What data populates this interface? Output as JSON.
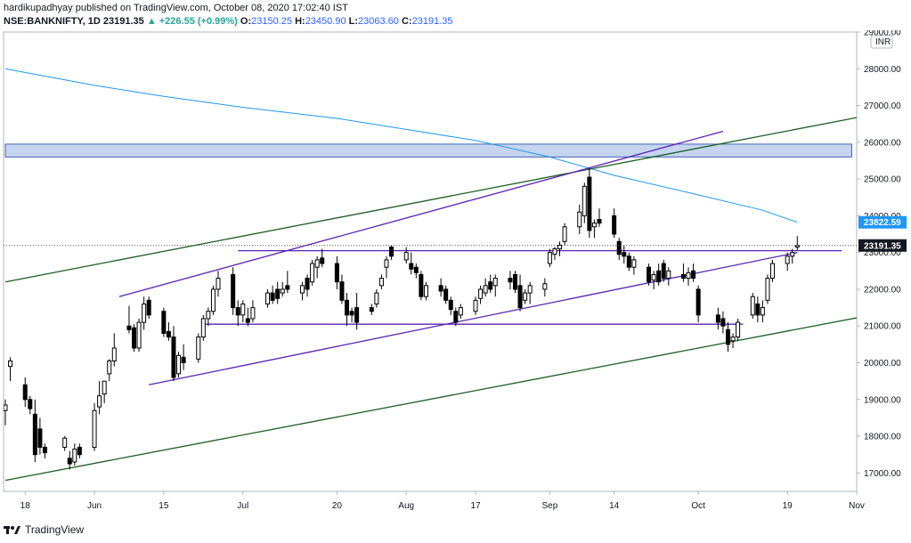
{
  "header": {
    "line1": "hardikupadhyay published on TradingView.com, October 08, 2020 17:02:40 IST",
    "symbol": "NSE:BANKNIFTY, 1D",
    "last": "23191.35",
    "change": "▲ +226.55 (+0.99%)",
    "o_label": "O:",
    "o": "23150.25",
    "h_label": "H:",
    "h": "23450.90",
    "l_label": "L:",
    "l": "23063.60",
    "c_label": "C:",
    "c": "23191.35"
  },
  "footer": {
    "brand": "TradingView"
  },
  "currency": "INR",
  "colors": {
    "ma": "#2196f3",
    "channel": "#5b21b6",
    "trend": "#1b5e20",
    "zone_fill": "#c5d5ef",
    "zone_border": "#3f63b5",
    "price_tag": "#131722",
    "ma_tag": "#2196f3"
  },
  "chart_data": {
    "type": "candlestick",
    "title": "",
    "xlabel": "",
    "ylabel": "",
    "ylim": [
      16500,
      29000
    ],
    "y_ticks": [
      17000,
      18000,
      19000,
      20000,
      21000,
      22000,
      23000,
      24000,
      25000,
      26000,
      27000,
      28000,
      29000
    ],
    "y_tick_labels": [
      "17000.00",
      "18000.00",
      "19000.00",
      "20000.00",
      "21000.00",
      "22000.00",
      "23000.00",
      "24000.00",
      "25000.00",
      "26000.00",
      "27000.00",
      "28000.00",
      "29000.00"
    ],
    "x_ticks": [
      {
        "label": "18",
        "date": "2020-05-18"
      },
      {
        "label": "Jun",
        "date": "2020-06-01"
      },
      {
        "label": "15",
        "date": "2020-06-15"
      },
      {
        "label": "Jul",
        "date": "2020-07-01"
      },
      {
        "label": "20",
        "date": "2020-07-20"
      },
      {
        "label": "Aug",
        "date": "2020-08-03"
      },
      {
        "label": "17",
        "date": "2020-08-17"
      },
      {
        "label": "Sep",
        "date": "2020-09-01"
      },
      {
        "label": "14",
        "date": "2020-09-14"
      },
      {
        "label": "Oct",
        "date": "2020-10-01"
      },
      {
        "label": "19",
        "date": "2020-10-19"
      },
      {
        "label": "Nov",
        "date": "2020-11-02"
      }
    ],
    "x_range": [
      "2020-05-14",
      "2020-11-02"
    ],
    "last_price": 23191.35,
    "last_price_label": "23191.35",
    "ma_last": 23822.59,
    "ma_last_label": "23822.59",
    "candles": [
      {
        "d": "2020-05-14",
        "o": 18700,
        "h": 19000,
        "l": 18300,
        "c": 18850
      },
      {
        "d": "2020-05-15",
        "o": 19900,
        "h": 20150,
        "l": 19500,
        "c": 20050
      },
      {
        "d": "2020-05-18",
        "o": 19400,
        "h": 19600,
        "l": 18800,
        "c": 19000
      },
      {
        "d": "2020-05-19",
        "o": 19000,
        "h": 19100,
        "l": 18600,
        "c": 18750
      },
      {
        "d": "2020-05-20",
        "o": 18600,
        "h": 19000,
        "l": 17300,
        "c": 17500
      },
      {
        "d": "2020-05-21",
        "o": 18200,
        "h": 18500,
        "l": 17500,
        "c": 17700
      },
      {
        "d": "2020-05-22",
        "o": 17700,
        "h": 17800,
        "l": 17400,
        "c": 17550
      },
      {
        "d": "2020-05-26",
        "o": 17700,
        "h": 18000,
        "l": 17600,
        "c": 17950
      },
      {
        "d": "2020-05-27",
        "o": 17400,
        "h": 17600,
        "l": 17100,
        "c": 17250
      },
      {
        "d": "2020-05-28",
        "o": 17300,
        "h": 17800,
        "l": 17200,
        "c": 17650
      },
      {
        "d": "2020-05-29",
        "o": 17700,
        "h": 17800,
        "l": 17400,
        "c": 17500
      },
      {
        "d": "2020-06-01",
        "o": 17700,
        "h": 18900,
        "l": 17600,
        "c": 18700
      },
      {
        "d": "2020-06-02",
        "o": 18800,
        "h": 19500,
        "l": 18600,
        "c": 19100
      },
      {
        "d": "2020-06-03",
        "o": 19150,
        "h": 19500,
        "l": 18900,
        "c": 19500
      },
      {
        "d": "2020-06-04",
        "o": 19700,
        "h": 20100,
        "l": 19500,
        "c": 20050
      },
      {
        "d": "2020-06-05",
        "o": 20050,
        "h": 20800,
        "l": 19900,
        "c": 20400
      },
      {
        "d": "2020-06-08",
        "o": 21000,
        "h": 21550,
        "l": 20800,
        "c": 20900
      },
      {
        "d": "2020-06-09",
        "o": 20950,
        "h": 21050,
        "l": 20300,
        "c": 20400
      },
      {
        "d": "2020-06-10",
        "o": 20400,
        "h": 21200,
        "l": 20300,
        "c": 21100
      },
      {
        "d": "2020-06-11",
        "o": 21100,
        "h": 21800,
        "l": 20900,
        "c": 21600
      },
      {
        "d": "2020-06-12",
        "o": 21700,
        "h": 21800,
        "l": 21200,
        "c": 21300
      },
      {
        "d": "2020-06-15",
        "o": 21400,
        "h": 21500,
        "l": 20700,
        "c": 20800
      },
      {
        "d": "2020-06-16",
        "o": 20850,
        "h": 21100,
        "l": 20600,
        "c": 20700
      },
      {
        "d": "2020-06-17",
        "o": 20700,
        "h": 21000,
        "l": 19500,
        "c": 19600
      },
      {
        "d": "2020-06-18",
        "o": 19700,
        "h": 20300,
        "l": 19600,
        "c": 20200
      },
      {
        "d": "2020-06-19",
        "o": 20150,
        "h": 20500,
        "l": 19800,
        "c": 20000
      },
      {
        "d": "2020-06-22",
        "o": 20100,
        "h": 20800,
        "l": 20000,
        "c": 20700
      },
      {
        "d": "2020-06-23",
        "o": 20700,
        "h": 21300,
        "l": 20600,
        "c": 21200
      },
      {
        "d": "2020-06-24",
        "o": 21200,
        "h": 21500,
        "l": 21000,
        "c": 21400
      },
      {
        "d": "2020-06-25",
        "o": 21400,
        "h": 22100,
        "l": 21300,
        "c": 22000
      },
      {
        "d": "2020-06-26",
        "o": 22000,
        "h": 22500,
        "l": 21800,
        "c": 22300
      },
      {
        "d": "2020-06-29",
        "o": 22400,
        "h": 22600,
        "l": 21300,
        "c": 21500
      },
      {
        "d": "2020-06-30",
        "o": 21500,
        "h": 21700,
        "l": 21000,
        "c": 21300
      },
      {
        "d": "2020-07-01",
        "o": 21300,
        "h": 21700,
        "l": 21100,
        "c": 21600
      },
      {
        "d": "2020-07-02",
        "o": 21200,
        "h": 21500,
        "l": 21000,
        "c": 21100
      },
      {
        "d": "2020-07-03",
        "o": 21200,
        "h": 21700,
        "l": 21100,
        "c": 21500
      },
      {
        "d": "2020-07-06",
        "o": 21600,
        "h": 22000,
        "l": 21500,
        "c": 21900
      },
      {
        "d": "2020-07-07",
        "o": 21900,
        "h": 22100,
        "l": 21600,
        "c": 21700
      },
      {
        "d": "2020-07-08",
        "o": 22000,
        "h": 22200,
        "l": 21600,
        "c": 21750
      },
      {
        "d": "2020-07-09",
        "o": 21900,
        "h": 22200,
        "l": 21800,
        "c": 22000
      },
      {
        "d": "2020-07-10",
        "o": 22100,
        "h": 22500,
        "l": 21900,
        "c": 22000
      },
      {
        "d": "2020-07-13",
        "o": 21900,
        "h": 22200,
        "l": 21700,
        "c": 22100
      },
      {
        "d": "2020-07-14",
        "o": 22300,
        "h": 22400,
        "l": 21800,
        "c": 22000
      },
      {
        "d": "2020-07-15",
        "o": 22200,
        "h": 22800,
        "l": 22100,
        "c": 22700
      },
      {
        "d": "2020-07-16",
        "o": 22600,
        "h": 22900,
        "l": 22300,
        "c": 22800
      },
      {
        "d": "2020-07-17",
        "o": 22850,
        "h": 23100,
        "l": 22600,
        "c": 22700
      },
      {
        "d": "2020-07-20",
        "o": 22700,
        "h": 22900,
        "l": 22000,
        "c": 22200
      },
      {
        "d": "2020-07-21",
        "o": 22200,
        "h": 22400,
        "l": 21600,
        "c": 21700
      },
      {
        "d": "2020-07-22",
        "o": 21700,
        "h": 21900,
        "l": 21000,
        "c": 21300
      },
      {
        "d": "2020-07-23",
        "o": 21400,
        "h": 21500,
        "l": 21100,
        "c": 21300
      },
      {
        "d": "2020-07-24",
        "o": 21500,
        "h": 21900,
        "l": 20900,
        "c": 21100
      },
      {
        "d": "2020-07-27",
        "o": 21500,
        "h": 21600,
        "l": 21300,
        "c": 21400
      },
      {
        "d": "2020-07-28",
        "o": 21600,
        "h": 22000,
        "l": 21500,
        "c": 21900
      },
      {
        "d": "2020-07-29",
        "o": 22100,
        "h": 22400,
        "l": 22000,
        "c": 22300
      },
      {
        "d": "2020-07-30",
        "o": 22600,
        "h": 22900,
        "l": 22300,
        "c": 22800
      },
      {
        "d": "2020-07-31",
        "o": 23150,
        "h": 23200,
        "l": 22800,
        "c": 22900
      },
      {
        "d": "2020-08-03",
        "o": 22800,
        "h": 23150,
        "l": 22700,
        "c": 23000
      },
      {
        "d": "2020-08-04",
        "o": 22700,
        "h": 23000,
        "l": 22400,
        "c": 22550
      },
      {
        "d": "2020-08-05",
        "o": 22600,
        "h": 22700,
        "l": 22300,
        "c": 22450
      },
      {
        "d": "2020-08-06",
        "o": 22400,
        "h": 22500,
        "l": 21700,
        "c": 21800
      },
      {
        "d": "2020-08-07",
        "o": 21800,
        "h": 22200,
        "l": 21700,
        "c": 22100
      },
      {
        "d": "2020-08-10",
        "o": 22100,
        "h": 22300,
        "l": 21800,
        "c": 21950
      },
      {
        "d": "2020-08-11",
        "o": 22000,
        "h": 22100,
        "l": 21600,
        "c": 21700
      },
      {
        "d": "2020-08-12",
        "o": 21700,
        "h": 21800,
        "l": 21300,
        "c": 21450
      },
      {
        "d": "2020-08-13",
        "o": 21400,
        "h": 21500,
        "l": 21000,
        "c": 21100
      },
      {
        "d": "2020-08-14",
        "o": 21300,
        "h": 21600,
        "l": 21200,
        "c": 21500
      },
      {
        "d": "2020-08-17",
        "o": 21400,
        "h": 21800,
        "l": 21300,
        "c": 21700
      },
      {
        "d": "2020-08-18",
        "o": 21750,
        "h": 22100,
        "l": 21600,
        "c": 22000
      },
      {
        "d": "2020-08-19",
        "o": 21900,
        "h": 22300,
        "l": 21800,
        "c": 22100
      },
      {
        "d": "2020-08-20",
        "o": 22200,
        "h": 22400,
        "l": 21900,
        "c": 22000
      },
      {
        "d": "2020-08-21",
        "o": 22100,
        "h": 22400,
        "l": 21800,
        "c": 22300
      },
      {
        "d": "2020-08-24",
        "o": 22300,
        "h": 22500,
        "l": 22000,
        "c": 22200
      },
      {
        "d": "2020-08-25",
        "o": 22400,
        "h": 22500,
        "l": 21900,
        "c": 22000
      },
      {
        "d": "2020-08-26",
        "o": 22100,
        "h": 22400,
        "l": 21400,
        "c": 21500
      },
      {
        "d": "2020-08-27",
        "o": 21700,
        "h": 22000,
        "l": 21600,
        "c": 21900
      },
      {
        "d": "2020-08-28",
        "o": 21900,
        "h": 22200,
        "l": 21600,
        "c": 22100
      },
      {
        "d": "2020-08-31",
        "o": 22000,
        "h": 22300,
        "l": 21800,
        "c": 22150
      },
      {
        "d": "2020-09-01",
        "o": 22700,
        "h": 23100,
        "l": 22600,
        "c": 23000
      },
      {
        "d": "2020-09-02",
        "o": 22950,
        "h": 23150,
        "l": 22800,
        "c": 23100
      },
      {
        "d": "2020-09-03",
        "o": 23100,
        "h": 23300,
        "l": 22900,
        "c": 23200
      },
      {
        "d": "2020-09-04",
        "o": 23300,
        "h": 23800,
        "l": 23200,
        "c": 23700
      },
      {
        "d": "2020-09-07",
        "o": 23700,
        "h": 24300,
        "l": 23500,
        "c": 24100
      },
      {
        "d": "2020-09-08",
        "o": 24000,
        "h": 24900,
        "l": 23800,
        "c": 24800
      },
      {
        "d": "2020-09-09",
        "o": 25050,
        "h": 25300,
        "l": 23400,
        "c": 23600
      },
      {
        "d": "2020-09-10",
        "o": 23700,
        "h": 23900,
        "l": 23400,
        "c": 23800
      },
      {
        "d": "2020-09-11",
        "o": 23900,
        "h": 24200,
        "l": 23700,
        "c": 23800
      },
      {
        "d": "2020-09-14",
        "o": 24000,
        "h": 24200,
        "l": 23400,
        "c": 23500
      },
      {
        "d": "2020-09-15",
        "o": 23300,
        "h": 23400,
        "l": 22800,
        "c": 22950
      },
      {
        "d": "2020-09-16",
        "o": 23000,
        "h": 23200,
        "l": 22700,
        "c": 22900
      },
      {
        "d": "2020-09-17",
        "o": 22900,
        "h": 23000,
        "l": 22500,
        "c": 22600
      },
      {
        "d": "2020-09-18",
        "o": 22600,
        "h": 22900,
        "l": 22400,
        "c": 22800
      },
      {
        "d": "2020-09-21",
        "o": 22600,
        "h": 22700,
        "l": 22100,
        "c": 22200
      },
      {
        "d": "2020-09-22",
        "o": 22250,
        "h": 22500,
        "l": 22000,
        "c": 22400
      },
      {
        "d": "2020-09-23",
        "o": 22500,
        "h": 22700,
        "l": 22100,
        "c": 22200
      },
      {
        "d": "2020-09-24",
        "o": 22700,
        "h": 22800,
        "l": 22200,
        "c": 22300
      },
      {
        "d": "2020-09-25",
        "o": 22300,
        "h": 22600,
        "l": 22100,
        "c": 22500
      },
      {
        "d": "2020-09-28",
        "o": 22400,
        "h": 22700,
        "l": 22200,
        "c": 22300
      },
      {
        "d": "2020-09-29",
        "o": 22300,
        "h": 22600,
        "l": 22100,
        "c": 22450
      },
      {
        "d": "2020-09-30",
        "o": 22500,
        "h": 22700,
        "l": 22200,
        "c": 22300
      },
      {
        "d": "2020-10-01",
        "o": 22000,
        "h": 22100,
        "l": 21100,
        "c": 21300
      },
      {
        "d": "2020-10-05",
        "o": 21300,
        "h": 21500,
        "l": 20900,
        "c": 21100
      },
      {
        "d": "2020-10-06",
        "o": 21200,
        "h": 21400,
        "l": 20800,
        "c": 21000
      },
      {
        "d": "2020-10-07",
        "o": 20900,
        "h": 21100,
        "l": 20300,
        "c": 20500
      },
      {
        "d": "2020-10-08",
        "o": 20600,
        "h": 20800,
        "l": 20400,
        "c": 20700
      },
      {
        "d": "2020-10-09",
        "o": 20700,
        "h": 21200,
        "l": 20600,
        "c": 21100
      },
      {
        "d": "2020-10-12",
        "o": 21300,
        "h": 21900,
        "l": 21200,
        "c": 21800
      },
      {
        "d": "2020-10-13",
        "o": 21600,
        "h": 21800,
        "l": 21100,
        "c": 21300
      },
      {
        "d": "2020-10-14",
        "o": 21300,
        "h": 21700,
        "l": 21100,
        "c": 21500
      },
      {
        "d": "2020-10-15",
        "o": 21700,
        "h": 22400,
        "l": 21600,
        "c": 22300
      },
      {
        "d": "2020-10-16",
        "o": 22300,
        "h": 22800,
        "l": 22200,
        "c": 22700
      },
      {
        "d": "2020-10-19",
        "o": 22700,
        "h": 23000,
        "l": 22500,
        "c": 22900
      },
      {
        "d": "2020-10-20",
        "o": 22900,
        "h": 23100,
        "l": 22700,
        "c": 23000
      },
      {
        "d": "2020-10-21",
        "o": 23150,
        "h": 23450,
        "l": 23063,
        "c": 23191
      }
    ],
    "moving_average": [
      {
        "d": "2020-05-14",
        "v": 28000
      },
      {
        "d": "2020-06-01",
        "v": 27550
      },
      {
        "d": "2020-06-15",
        "v": 27250
      },
      {
        "d": "2020-07-01",
        "v": 26950
      },
      {
        "d": "2020-07-20",
        "v": 26650
      },
      {
        "d": "2020-08-03",
        "v": 26350
      },
      {
        "d": "2020-08-17",
        "v": 26050
      },
      {
        "d": "2020-09-01",
        "v": 25600
      },
      {
        "d": "2020-09-14",
        "v": 25100
      },
      {
        "d": "2020-09-30",
        "v": 24600
      },
      {
        "d": "2020-10-14",
        "v": 24150
      },
      {
        "d": "2020-10-21",
        "v": 23822.59
      }
    ],
    "zones": [
      {
        "from_date": "2020-05-14",
        "to_date": "2020-11-01",
        "low": 25600,
        "high": 25950
      }
    ],
    "trendlines": [
      {
        "name": "lower-trend",
        "color_key": "trend",
        "d1": "2020-05-14",
        "v1": 16800,
        "d2": "2020-11-05",
        "v2": 21300
      },
      {
        "name": "upper-trend",
        "color_key": "trend",
        "d1": "2020-05-14",
        "v1": 22200,
        "d2": "2020-11-05",
        "v2": 26750
      },
      {
        "name": "channel-upper",
        "color_key": "channel",
        "d1": "2020-06-06",
        "v1": 21800,
        "d2": "2020-10-06",
        "v2": 26300
      },
      {
        "name": "channel-lower",
        "color_key": "channel",
        "d1": "2020-06-12",
        "v1": 19400,
        "d2": "2020-10-21",
        "v2": 23000
      },
      {
        "name": "resistance",
        "color_key": "channel",
        "d1": "2020-06-30",
        "v1": 23050,
        "d2": "2020-10-30",
        "v2": 23050
      },
      {
        "name": "support",
        "color_key": "channel",
        "d1": "2020-06-23",
        "v1": 21050,
        "d2": "2020-10-10",
        "v2": 21050
      }
    ]
  }
}
